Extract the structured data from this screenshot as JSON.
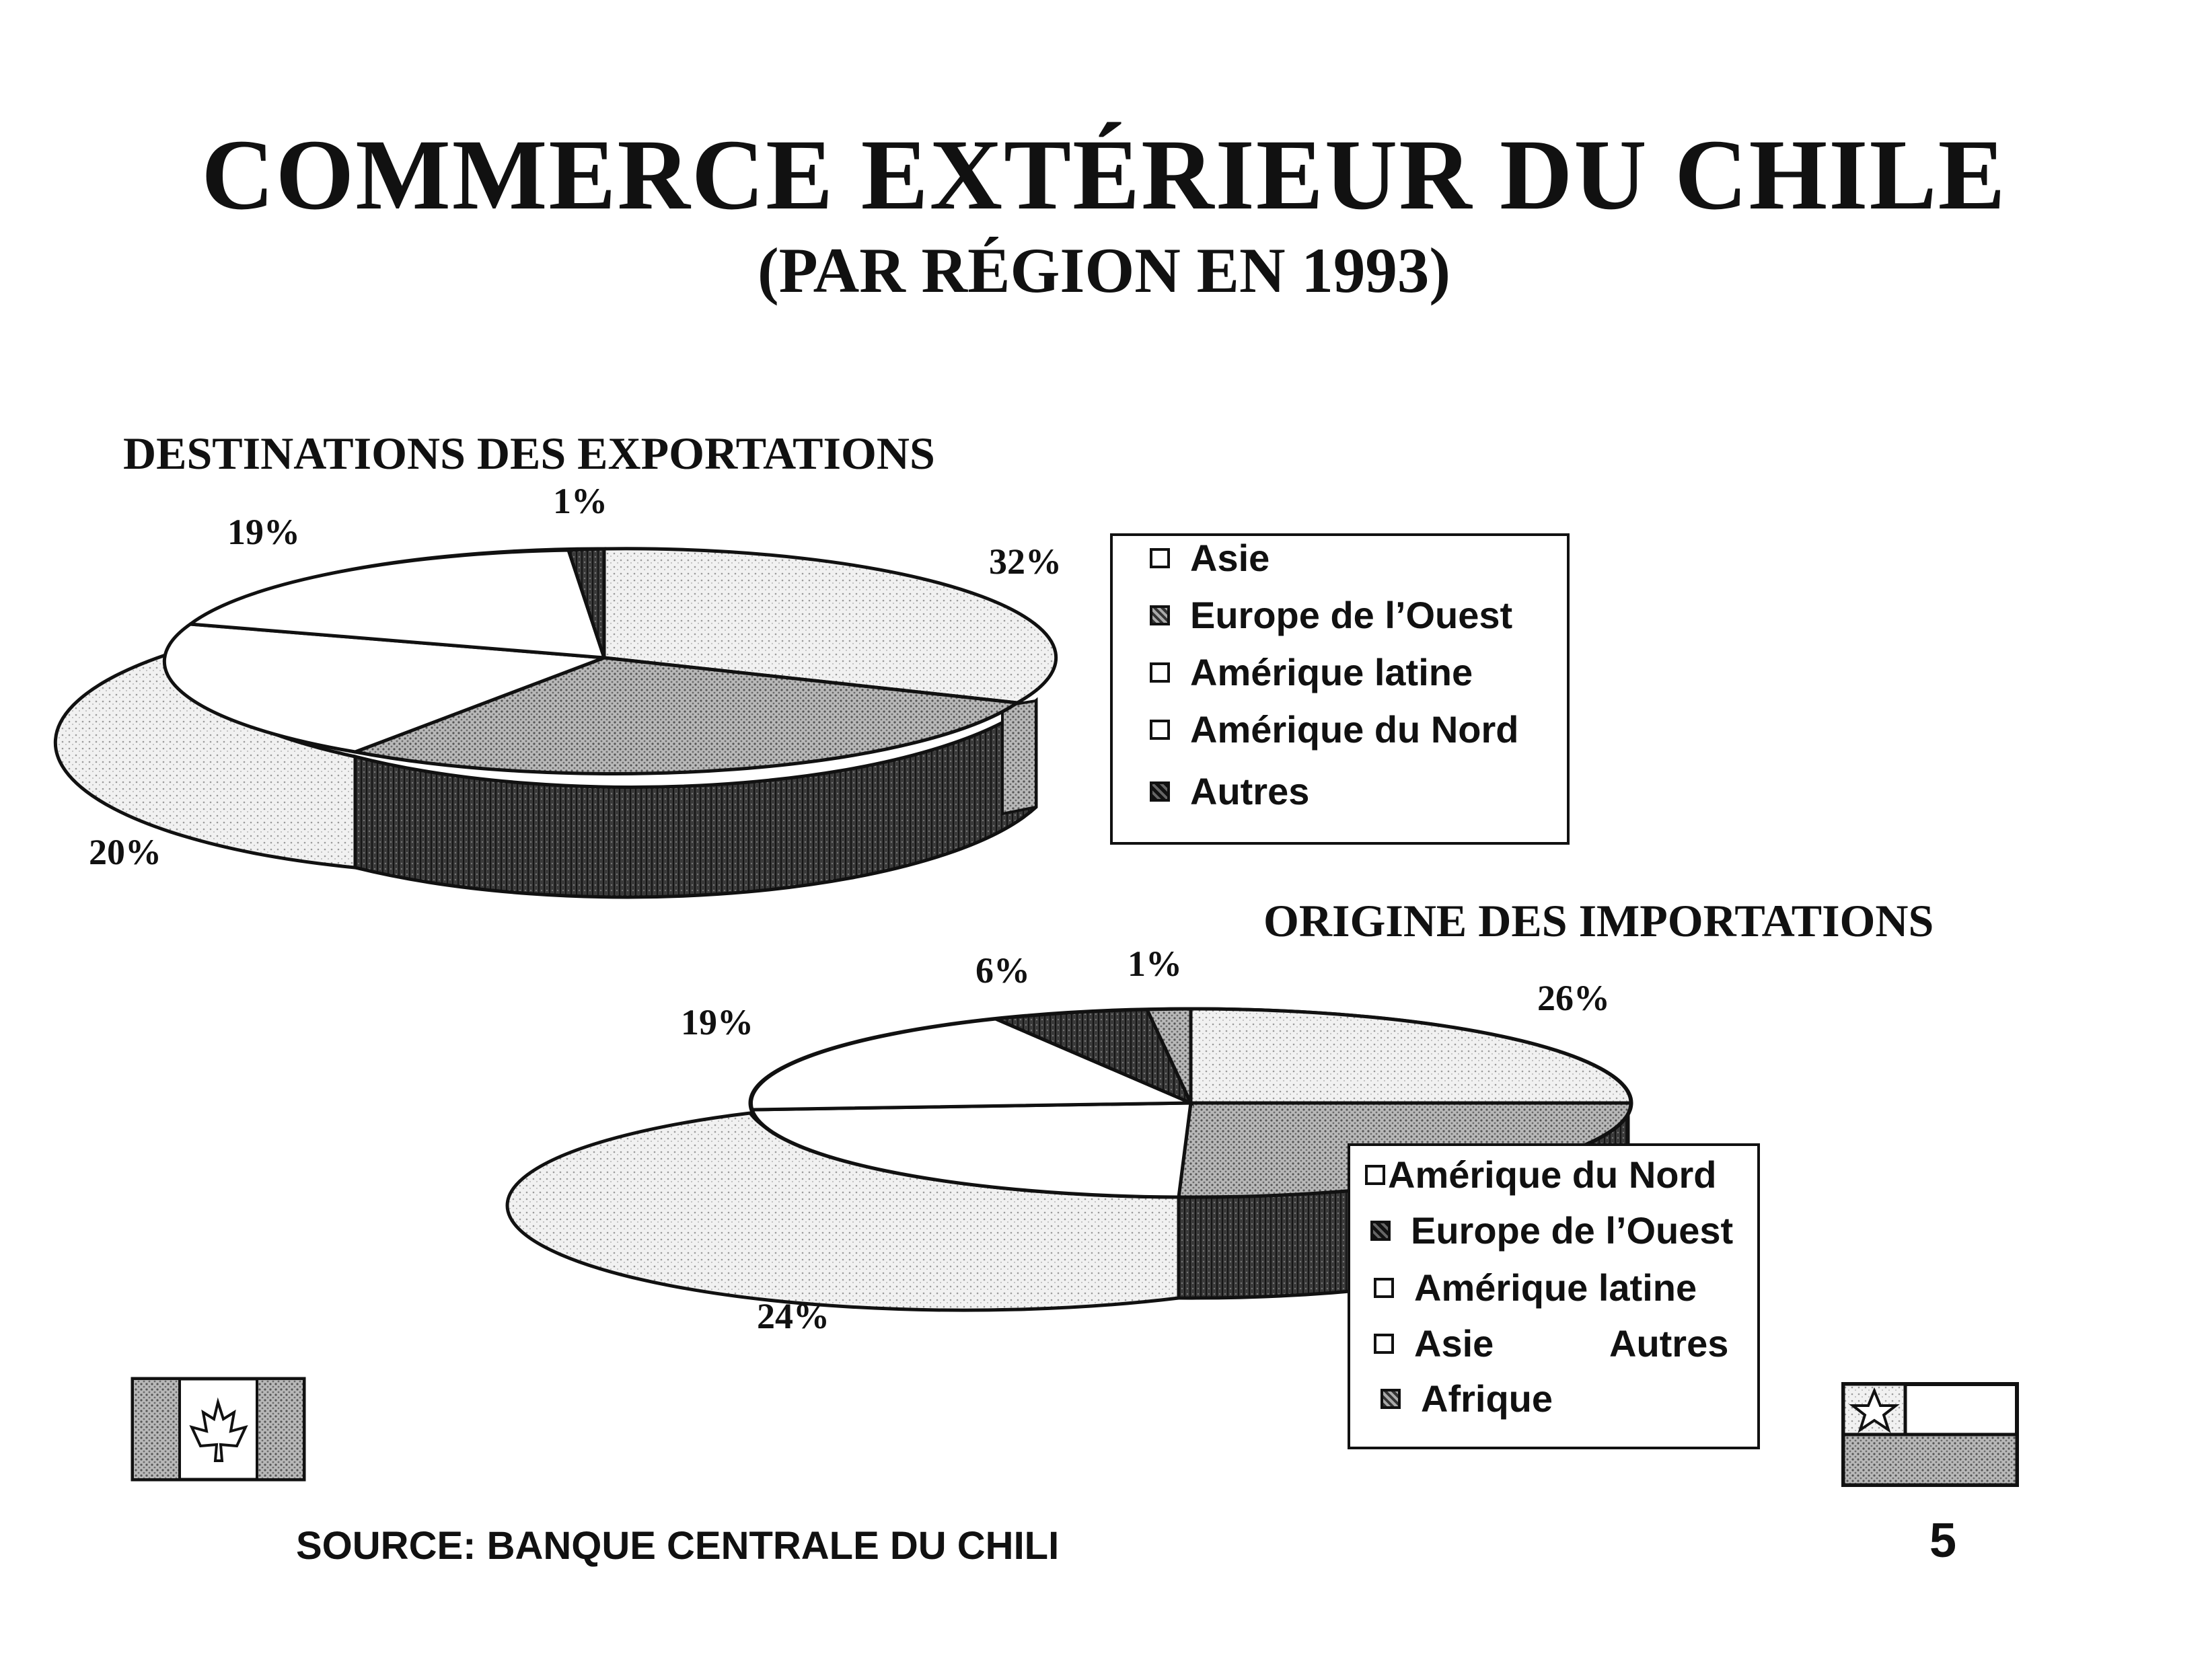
{
  "header": {
    "title": "COMMERCE EXTÉRIEUR DU CHILE",
    "subtitle": "(PAR  RÉGION EN 1993)"
  },
  "chart_data": [
    {
      "type": "pie",
      "title": "DESTINATIONS DES EXPORTATIONS",
      "slice_labels": [
        "32%",
        "1%",
        "19%",
        "20%"
      ],
      "slices": [
        {
          "name": "Asie",
          "value": 32,
          "label": "32%"
        },
        {
          "name": "Europe de l'Ouest",
          "value": 28
        },
        {
          "name": "Amérique latine",
          "value": 20,
          "label": "20%"
        },
        {
          "name": "Amérique du Nord",
          "value": 19,
          "label": "19%"
        },
        {
          "name": "Autres",
          "value": 1,
          "label": "1%"
        }
      ],
      "legend": {
        "placement": "right",
        "items": [
          {
            "label": "Asie",
            "pattern": "light"
          },
          {
            "label": "Europe de l’Ouest",
            "pattern": "dotted"
          },
          {
            "label": "Amérique latine",
            "pattern": "light"
          },
          {
            "label": "Amérique du Nord",
            "pattern": "light"
          },
          {
            "label": "Autres",
            "pattern": "dark"
          }
        ]
      }
    },
    {
      "type": "pie",
      "title": "ORIGINE DES IMPORTATIONS",
      "slice_labels": [
        "26%",
        "1%",
        "6%",
        "19%",
        "24%"
      ],
      "slices": [
        {
          "name": "Amérique du Nord",
          "value": 26,
          "label": "26%"
        },
        {
          "name": "Europe de l'Ouest",
          "value": 24
        },
        {
          "name": "Amérique latine",
          "value": 24,
          "label": "24%"
        },
        {
          "name": "Asie",
          "value": 19,
          "label": "19%"
        },
        {
          "name": "Autres",
          "value": 6,
          "label": "6%"
        },
        {
          "name": "Afrique",
          "value": 1,
          "label": "1%"
        }
      ],
      "legend": {
        "placement": "bottom-right",
        "items": [
          {
            "label": "Amérique du Nord",
            "pattern": "light"
          },
          {
            "label": "Europe de l’Ouest",
            "pattern": "dark"
          },
          {
            "label": "Amérique latine",
            "pattern": "light"
          },
          {
            "label": "Asie",
            "pattern": "light"
          },
          {
            "label": "Autres",
            "pattern": "none"
          },
          {
            "label": "Afrique",
            "pattern": "dotted"
          }
        ]
      }
    }
  ],
  "footer": {
    "source": "SOURCE:  BANQUE CENTRALE DU CHILI",
    "page_number": "5"
  },
  "colors": {
    "ink": "#111111",
    "light_fill": "#ececec",
    "medium_fill": "#9a9a9a",
    "dark_fill": "#3a3a3a"
  }
}
